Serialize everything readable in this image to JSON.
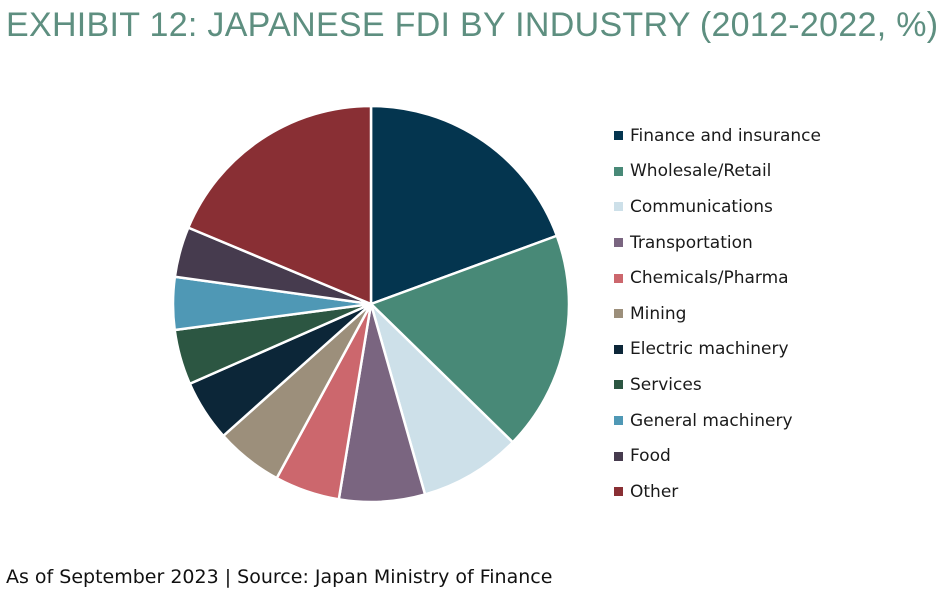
{
  "title": "EXHIBIT 12: JAPANESE FDI BY INDUSTRY (2012-2022, %)",
  "footnote": "As of September 2023 | Source: Japan Ministry of Finance",
  "chart_data": {
    "type": "pie",
    "title": "EXHIBIT 12: JAPANESE FDI BY INDUSTRY (2012-2022, %)",
    "unit": "%",
    "start_angle": "12 o'clock",
    "direction": "clockwise",
    "legend_position": "right",
    "slices": [
      {
        "label": "Finance and insurance",
        "value": 19.4,
        "color": "#04354f"
      },
      {
        "label": "Wholesale/Retail",
        "value": 17.9,
        "color": "#488977"
      },
      {
        "label": "Communications",
        "value": 8.3,
        "color": "#cde0e9"
      },
      {
        "label": "Transportation",
        "value": 7.0,
        "color": "#7a6580"
      },
      {
        "label": "Chemicals/Pharma",
        "value": 5.3,
        "color": "#cc676d"
      },
      {
        "label": "Mining",
        "value": 5.5,
        "color": "#9c8f7b"
      },
      {
        "label": "Electric machinery",
        "value": 5.0,
        "color": "#0c2638"
      },
      {
        "label": "Services",
        "value": 4.5,
        "color": "#2c5642"
      },
      {
        "label": "General machinery",
        "value": 4.3,
        "color": "#4f98b5"
      },
      {
        "label": "Food",
        "value": 4.1,
        "color": "#463b4e"
      },
      {
        "label": "Other",
        "value": 18.7,
        "color": "#892f34"
      }
    ]
  }
}
